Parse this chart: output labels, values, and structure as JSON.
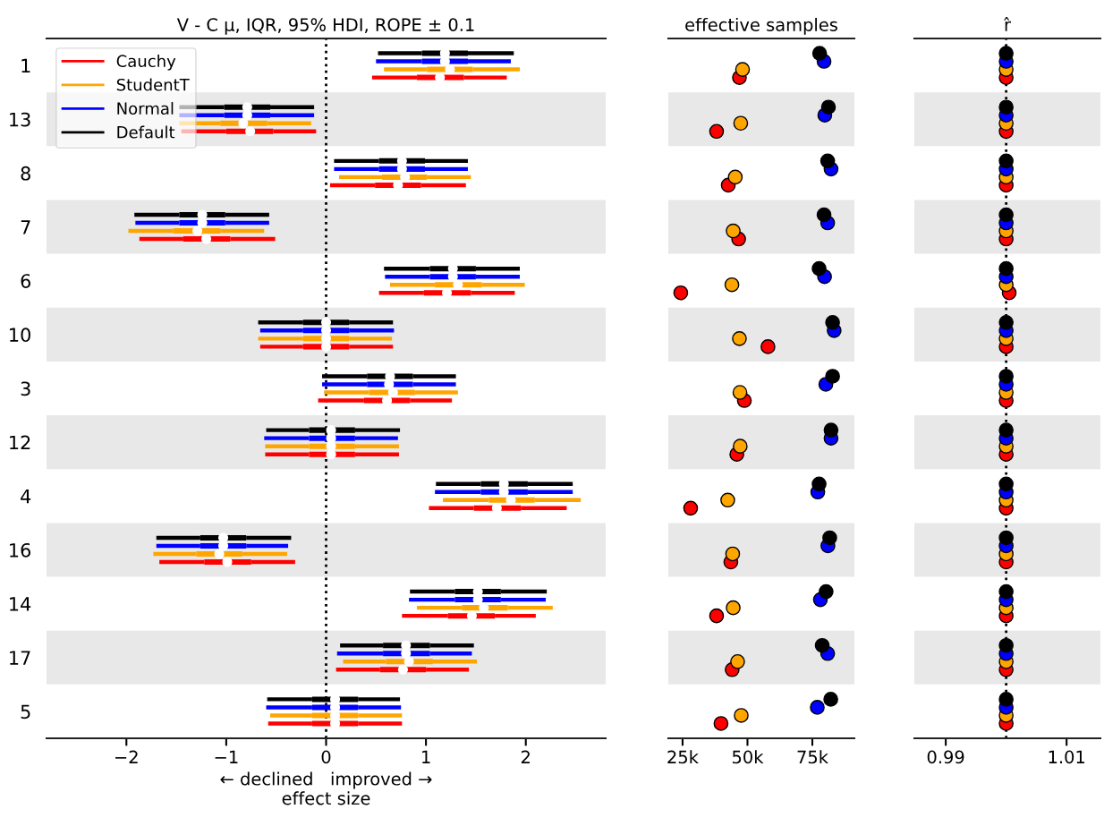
{
  "chart_data": [
    {
      "type": "box",
      "orientation": "horizontal",
      "title": "V - C μ, IQR, 95% HDI, ROPE ± 0.1",
      "xlabel": "← declined   improved →\neffect size",
      "legend": "top left",
      "grid": false,
      "categories": [
        "1",
        "13",
        "8",
        "7",
        "6",
        "10",
        "3",
        "12",
        "4",
        "16",
        "14",
        "17",
        "5"
      ],
      "xlim": [
        -2.8,
        2.8
      ],
      "xticks": [
        {
          "value": -2,
          "label": "−2"
        },
        {
          "value": -1,
          "label": "−1"
        },
        0,
        1,
        2
      ],
      "ref_lines": [
        {
          "axis": "x",
          "value": 0,
          "line_style": "dotted",
          "color": "#000000"
        }
      ],
      "bands": [
        {
          "axis": "y",
          "from": "13",
          "to": "13",
          "color": "#e8e8e8"
        },
        {
          "axis": "y",
          "from": "7",
          "to": "7",
          "color": "#e8e8e8"
        },
        {
          "axis": "y",
          "from": "10",
          "to": "10",
          "color": "#e8e8e8"
        },
        {
          "axis": "y",
          "from": "12",
          "to": "12",
          "color": "#e8e8e8"
        },
        {
          "axis": "y",
          "from": "16",
          "to": "16",
          "color": "#e8e8e8"
        },
        {
          "axis": "y",
          "from": "17",
          "to": "17",
          "color": "#e8e8e8"
        }
      ],
      "series": [
        {
          "name": "Cauchy",
          "color": "#ff0000",
          "boxes": [
            {
              "low": 0.46,
              "q1": 0.91,
              "median": 1.14,
              "q3": 1.38,
              "high": 1.81
            },
            {
              "low": -1.45,
              "q1": -1.0,
              "median": -0.76,
              "q3": -0.53,
              "high": -0.1
            },
            {
              "low": 0.04,
              "q1": 0.49,
              "median": 0.72,
              "q3": 0.95,
              "high": 1.4
            },
            {
              "low": -1.87,
              "q1": -1.43,
              "median": -1.2,
              "q3": -0.96,
              "high": -0.51
            },
            {
              "low": 0.53,
              "q1": 0.98,
              "median": 1.21,
              "q3": 1.45,
              "high": 1.89
            },
            {
              "low": -0.66,
              "q1": -0.23,
              "median": 0.0,
              "q3": 0.23,
              "high": 0.67
            },
            {
              "low": -0.08,
              "q1": 0.38,
              "median": 0.61,
              "q3": 0.84,
              "high": 1.26
            },
            {
              "low": -0.61,
              "q1": -0.17,
              "median": 0.05,
              "q3": 0.29,
              "high": 0.73
            },
            {
              "low": 1.03,
              "q1": 1.48,
              "median": 1.71,
              "q3": 1.95,
              "high": 2.41
            },
            {
              "low": -1.67,
              "q1": -1.22,
              "median": -0.99,
              "q3": -0.75,
              "high": -0.31
            },
            {
              "low": 0.76,
              "q1": 1.22,
              "median": 1.46,
              "q3": 1.69,
              "high": 2.1
            },
            {
              "low": 0.1,
              "q1": 0.54,
              "median": 0.77,
              "q3": 1.0,
              "high": 1.43
            },
            {
              "low": -0.58,
              "q1": -0.14,
              "median": 0.09,
              "q3": 0.32,
              "high": 0.76
            }
          ]
        },
        {
          "name": "StudentT",
          "color": "#ffa500",
          "boxes": [
            {
              "low": 0.58,
              "q1": 1.01,
              "median": 1.24,
              "q3": 1.47,
              "high": 1.94
            },
            {
              "low": -1.47,
              "q1": -1.06,
              "median": -0.83,
              "q3": -0.59,
              "high": -0.15
            },
            {
              "low": 0.13,
              "q1": 0.56,
              "median": 0.79,
              "q3": 1.01,
              "high": 1.45
            },
            {
              "low": -1.98,
              "q1": -1.53,
              "median": -1.29,
              "q3": -1.06,
              "high": -0.62
            },
            {
              "low": 0.64,
              "q1": 1.09,
              "median": 1.32,
              "q3": 1.56,
              "high": 1.99
            },
            {
              "low": -0.68,
              "q1": -0.23,
              "median": 0.0,
              "q3": 0.23,
              "high": 0.66
            },
            {
              "low": -0.02,
              "q1": 0.43,
              "median": 0.67,
              "q3": 0.89,
              "high": 1.32
            },
            {
              "low": -0.61,
              "q1": -0.17,
              "median": 0.05,
              "q3": 0.29,
              "high": 0.73
            },
            {
              "low": 1.17,
              "q1": 1.63,
              "median": 1.85,
              "q3": 2.09,
              "high": 2.55
            },
            {
              "low": -1.73,
              "q1": -1.3,
              "median": -1.07,
              "q3": -0.84,
              "high": -0.39
            },
            {
              "low": 0.91,
              "q1": 1.36,
              "median": 1.58,
              "q3": 1.82,
              "high": 2.27
            },
            {
              "low": 0.17,
              "q1": 0.6,
              "median": 0.83,
              "q3": 1.07,
              "high": 1.51
            },
            {
              "low": -0.56,
              "q1": -0.14,
              "median": 0.09,
              "q3": 0.32,
              "high": 0.76
            }
          ]
        },
        {
          "name": "Normal",
          "color": "#0000ff",
          "boxes": [
            {
              "low": 0.5,
              "q1": 0.96,
              "median": 1.19,
              "q3": 1.42,
              "high": 1.85
            },
            {
              "low": -1.47,
              "q1": -1.02,
              "median": -0.79,
              "q3": -0.56,
              "high": -0.12
            },
            {
              "low": 0.08,
              "q1": 0.53,
              "median": 0.76,
              "q3": 0.99,
              "high": 1.42
            },
            {
              "low": -1.91,
              "q1": -1.47,
              "median": -1.24,
              "q3": -1.01,
              "high": -0.57
            },
            {
              "low": 0.59,
              "q1": 1.04,
              "median": 1.27,
              "q3": 1.5,
              "high": 1.94
            },
            {
              "low": -0.66,
              "q1": -0.23,
              "median": 0.0,
              "q3": 0.23,
              "high": 0.68
            },
            {
              "low": -0.04,
              "q1": 0.41,
              "median": 0.63,
              "q3": 0.87,
              "high": 1.3
            },
            {
              "low": -0.62,
              "q1": -0.17,
              "median": 0.05,
              "q3": 0.29,
              "high": 0.72
            },
            {
              "low": 1.09,
              "q1": 1.55,
              "median": 1.78,
              "q3": 2.02,
              "high": 2.47
            },
            {
              "low": -1.7,
              "q1": -1.26,
              "median": -1.03,
              "q3": -0.8,
              "high": -0.38
            },
            {
              "low": 0.83,
              "q1": 1.29,
              "median": 1.52,
              "q3": 1.75,
              "high": 2.2
            },
            {
              "low": 0.11,
              "q1": 0.57,
              "median": 0.8,
              "q3": 1.04,
              "high": 1.46
            },
            {
              "low": -0.6,
              "q1": -0.14,
              "median": 0.09,
              "q3": 0.32,
              "high": 0.75
            }
          ]
        },
        {
          "name": "Default",
          "color": "#000000",
          "boxes": [
            {
              "low": 0.52,
              "q1": 0.96,
              "median": 1.19,
              "q3": 1.42,
              "high": 1.88
            },
            {
              "low": -1.47,
              "q1": -1.02,
              "median": -0.79,
              "q3": -0.56,
              "high": -0.12
            },
            {
              "low": 0.08,
              "q1": 0.53,
              "median": 0.76,
              "q3": 0.99,
              "high": 1.42
            },
            {
              "low": -1.92,
              "q1": -1.47,
              "median": -1.24,
              "q3": -1.01,
              "high": -0.57
            },
            {
              "low": 0.58,
              "q1": 1.04,
              "median": 1.27,
              "q3": 1.5,
              "high": 1.94
            },
            {
              "low": -0.68,
              "q1": -0.23,
              "median": 0.0,
              "q3": 0.23,
              "high": 0.67
            },
            {
              "low": -0.04,
              "q1": 0.41,
              "median": 0.64,
              "q3": 0.87,
              "high": 1.3
            },
            {
              "low": -0.6,
              "q1": -0.17,
              "median": 0.05,
              "q3": 0.29,
              "high": 0.74
            },
            {
              "low": 1.1,
              "q1": 1.55,
              "median": 1.78,
              "q3": 2.02,
              "high": 2.47
            },
            {
              "low": -1.7,
              "q1": -1.26,
              "median": -1.03,
              "q3": -0.8,
              "high": -0.35
            },
            {
              "low": 0.84,
              "q1": 1.29,
              "median": 1.52,
              "q3": 1.75,
              "high": 2.21
            },
            {
              "low": 0.14,
              "q1": 0.57,
              "median": 0.8,
              "q3": 1.04,
              "high": 1.48
            },
            {
              "low": -0.59,
              "q1": -0.14,
              "median": 0.09,
              "q3": 0.32,
              "high": 0.74
            }
          ]
        }
      ]
    },
    {
      "type": "scatter",
      "orientation": "horizontal",
      "title": "effective samples",
      "tick_labels": "x",
      "grid": false,
      "marker": "circle",
      "categories": [
        "1",
        "13",
        "8",
        "7",
        "6",
        "10",
        "3",
        "12",
        "4",
        "16",
        "14",
        "17",
        "5"
      ],
      "xlim": [
        19500,
        91200
      ],
      "xticks": [
        {
          "value": 25000,
          "label": "25k"
        },
        {
          "value": 50000,
          "label": "50k"
        },
        {
          "value": 75000,
          "label": "75k"
        }
      ],
      "bands": [
        {
          "axis": "y",
          "from": "13",
          "to": "13",
          "color": "#e8e8e8"
        },
        {
          "axis": "y",
          "from": "7",
          "to": "7",
          "color": "#e8e8e8"
        },
        {
          "axis": "y",
          "from": "10",
          "to": "10",
          "color": "#e8e8e8"
        },
        {
          "axis": "y",
          "from": "12",
          "to": "12",
          "color": "#e8e8e8"
        },
        {
          "axis": "y",
          "from": "16",
          "to": "16",
          "color": "#e8e8e8"
        },
        {
          "axis": "y",
          "from": "17",
          "to": "17",
          "color": "#e8e8e8"
        }
      ],
      "series": [
        {
          "color": "#ff0000",
          "values": [
            46900,
            38100,
            42600,
            46600,
            24300,
            57900,
            48800,
            45900,
            28100,
            43600,
            38100,
            44100,
            39800
          ]
        },
        {
          "color": "#ffa500",
          "values": [
            48100,
            47400,
            45300,
            44500,
            44000,
            46900,
            47100,
            47200,
            42400,
            44300,
            44500,
            46200,
            47600
          ]
        },
        {
          "color": "#0000ff",
          "values": [
            79500,
            79800,
            82200,
            80900,
            79700,
            83400,
            80200,
            82200,
            77100,
            81000,
            78100,
            80900,
            76900
          ]
        },
        {
          "color": "#000000",
          "values": [
            77800,
            81200,
            80900,
            79500,
            77600,
            82800,
            82800,
            82200,
            77600,
            81700,
            80300,
            78800,
            82100
          ]
        }
      ]
    },
    {
      "type": "scatter",
      "orientation": "horizontal",
      "title": "r̂",
      "tick_labels": "x",
      "grid": false,
      "marker": "circle",
      "categories": [
        "1",
        "13",
        "8",
        "7",
        "6",
        "10",
        "3",
        "12",
        "4",
        "16",
        "14",
        "17",
        "5"
      ],
      "xlim": [
        0.9848,
        1.0156
      ],
      "xticks": [
        0.99,
        1.01
      ],
      "ref_lines": [
        {
          "axis": "x",
          "value": 1,
          "line_style": "dotted",
          "color": "#000000"
        }
      ],
      "bands": [
        {
          "axis": "y",
          "from": "13",
          "to": "13",
          "color": "#e8e8e8"
        },
        {
          "axis": "y",
          "from": "7",
          "to": "7",
          "color": "#e8e8e8"
        },
        {
          "axis": "y",
          "from": "10",
          "to": "10",
          "color": "#e8e8e8"
        },
        {
          "axis": "y",
          "from": "12",
          "to": "12",
          "color": "#e8e8e8"
        },
        {
          "axis": "y",
          "from": "16",
          "to": "16",
          "color": "#e8e8e8"
        },
        {
          "axis": "y",
          "from": "17",
          "to": "17",
          "color": "#e8e8e8"
        }
      ],
      "series": [
        {
          "color": "#ff0000",
          "values": [
            1.0,
            1.0,
            1.0,
            1.0,
            1.0005,
            1.0,
            1.0,
            1.0,
            1.0,
            1.0,
            1.0,
            1.0,
            1.0
          ]
        },
        {
          "color": "#ffa500",
          "values": [
            1.0,
            1.0,
            1.0,
            1.0,
            1.0,
            1.0,
            1.0,
            1.0,
            1.0,
            1.0,
            1.0,
            1.0,
            1.0
          ]
        },
        {
          "color": "#0000ff",
          "values": [
            1.0,
            1.0,
            1.0,
            1.0,
            1.0,
            1.0,
            1.0,
            1.0,
            1.0,
            1.0,
            1.0,
            1.0,
            1.0
          ]
        },
        {
          "color": "#000000",
          "values": [
            1.0,
            1.0,
            1.0,
            1.0,
            1.0,
            1.0,
            1.0,
            1.0,
            1.0,
            1.0,
            1.0,
            1.0,
            1.0
          ]
        }
      ]
    }
  ]
}
